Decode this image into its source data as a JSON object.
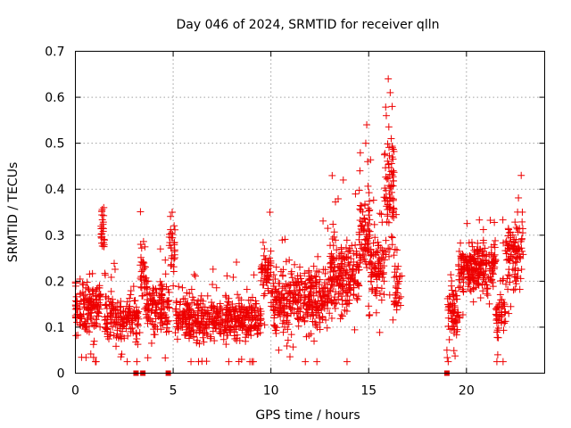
{
  "chart_data": {
    "type": "scatter",
    "title": "Day 046 of 2024, SRMTID for receiver qlln",
    "xlabel": "GPS time / hours",
    "ylabel": "SRMTID / TECUs",
    "xlim": [
      0,
      24
    ],
    "ylim": [
      0,
      0.7
    ],
    "xticks": [
      "0",
      "5",
      "10",
      "15",
      "20"
    ],
    "xtick_values": [
      0,
      5,
      10,
      15,
      20
    ],
    "yticks": [
      "0",
      "0.1",
      "0.2",
      "0.3",
      "0.4",
      "0.5",
      "0.6",
      "0.7"
    ],
    "ytick_values": [
      0,
      0.1,
      0.2,
      0.3,
      0.4,
      0.5,
      0.6,
      0.7
    ],
    "grid": true,
    "marker": "+",
    "color": "#ee0000",
    "series": [
      {
        "name": "SRMTID",
        "description": "Red plus markers, one per satellite epoch; points sampled from trend described in segments",
        "segments": [
          {
            "t_start": 0.0,
            "t_end": 1.3,
            "y_mean": 0.15,
            "y_spread": 0.055,
            "n": 150
          },
          {
            "t_start": 1.3,
            "t_end": 1.5,
            "y_mean": 0.3,
            "y_spread": 0.05,
            "n": 25
          },
          {
            "t_start": 1.5,
            "t_end": 3.3,
            "y_mean": 0.12,
            "y_spread": 0.05,
            "n": 170
          },
          {
            "t_start": 3.3,
            "t_end": 3.6,
            "y_mean": 0.22,
            "y_spread": 0.06,
            "n": 30
          },
          {
            "t_start": 3.6,
            "t_end": 4.8,
            "y_mean": 0.15,
            "y_spread": 0.055,
            "n": 130
          },
          {
            "t_start": 4.8,
            "t_end": 5.1,
            "y_mean": 0.27,
            "y_spread": 0.06,
            "n": 30
          },
          {
            "t_start": 5.1,
            "t_end": 9.5,
            "y_mean": 0.12,
            "y_spread": 0.045,
            "n": 450
          },
          {
            "t_start": 9.5,
            "t_end": 10.0,
            "y_mean": 0.22,
            "y_spread": 0.05,
            "n": 50
          },
          {
            "t_start": 10.0,
            "t_end": 13.0,
            "y_mean": 0.16,
            "y_spread": 0.07,
            "n": 340
          },
          {
            "t_start": 13.0,
            "t_end": 14.5,
            "y_mean": 0.22,
            "y_spread": 0.08,
            "n": 190
          },
          {
            "t_start": 14.5,
            "t_end": 15.1,
            "y_mean": 0.3,
            "y_spread": 0.09,
            "n": 80
          },
          {
            "t_start": 15.1,
            "t_end": 15.8,
            "y_mean": 0.23,
            "y_spread": 0.06,
            "n": 80
          },
          {
            "t_start": 15.8,
            "t_end": 16.3,
            "y_mean": 0.4,
            "y_spread": 0.13,
            "n": 80
          },
          {
            "t_start": 16.3,
            "t_end": 16.7,
            "y_mean": 0.18,
            "y_spread": 0.06,
            "n": 35
          },
          {
            "t_start": 19.0,
            "t_end": 19.6,
            "y_mean": 0.13,
            "y_spread": 0.05,
            "n": 70
          },
          {
            "t_start": 19.6,
            "t_end": 21.5,
            "y_mean": 0.23,
            "y_spread": 0.05,
            "n": 230
          },
          {
            "t_start": 21.5,
            "t_end": 22.0,
            "y_mean": 0.14,
            "y_spread": 0.07,
            "n": 50
          },
          {
            "t_start": 22.0,
            "t_end": 22.9,
            "y_mean": 0.26,
            "y_spread": 0.07,
            "n": 100
          }
        ],
        "peaks": [
          {
            "x": 16.0,
            "y": 0.64
          },
          {
            "x": 16.1,
            "y": 0.61
          },
          {
            "x": 16.2,
            "y": 0.58
          },
          {
            "x": 16.15,
            "y": 0.51
          },
          {
            "x": 16.2,
            "y": 0.47
          },
          {
            "x": 14.9,
            "y": 0.54
          },
          {
            "x": 14.85,
            "y": 0.5
          },
          {
            "x": 14.95,
            "y": 0.46
          },
          {
            "x": 15.9,
            "y": 0.56
          },
          {
            "x": 16.25,
            "y": 0.44
          },
          {
            "x": 22.8,
            "y": 0.43
          },
          {
            "x": 13.7,
            "y": 0.42
          },
          {
            "x": 14.55,
            "y": 0.44
          },
          {
            "x": 1.45,
            "y": 0.36
          },
          {
            "x": 4.95,
            "y": 0.35
          },
          {
            "x": 9.95,
            "y": 0.35
          },
          {
            "x": 8.5,
            "y": 0.03
          },
          {
            "x": 10.4,
            "y": 0.05
          },
          {
            "x": 21.6,
            "y": 0.04
          },
          {
            "x": 19.0,
            "y": 0.05
          }
        ]
      }
    ],
    "zero_markers_x": [
      3.1,
      3.45,
      4.75,
      19.0
    ]
  }
}
